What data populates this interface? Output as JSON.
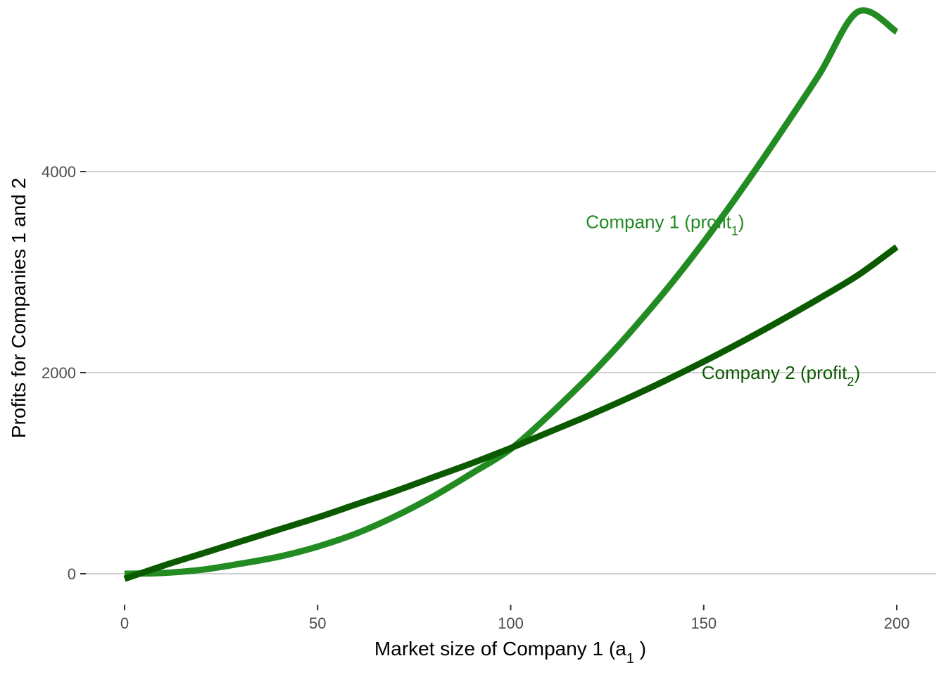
{
  "chart_data": {
    "type": "line",
    "title": "",
    "xlabel": "Market size of Company 1  (a",
    "xlabel_subscript": "1",
    "xlabel_suffix": " )",
    "ylabel": "Profits for Companies 1 and 2",
    "xlim": [
      0,
      200
    ],
    "ylim": [
      -200,
      5300
    ],
    "grid": "horizontal major",
    "x_ticks": [
      0,
      50,
      100,
      150,
      200
    ],
    "y_ticks": [
      0,
      2000,
      4000
    ],
    "x_tick_labels": [
      "0",
      "50",
      "100",
      "150",
      "200"
    ],
    "y_tick_labels": [
      "0",
      "2000",
      "4000"
    ],
    "series": [
      {
        "label": "Company 1 (profit",
        "label_subscript": "1",
        "label_suffix": ")",
        "color": "#228B22",
        "x": [
          0,
          10,
          20,
          30,
          40,
          50,
          60,
          70,
          80,
          90,
          100,
          110,
          120,
          125,
          130,
          140,
          150,
          160,
          170,
          180,
          190,
          200
        ],
        "y": [
          0,
          8,
          40,
          100,
          170,
          270,
          400,
          570,
          770,
          1000,
          1240,
          1580,
          1950,
          2150,
          2360,
          2810,
          3300,
          3830,
          4390,
          4970,
          5590,
          5390
        ]
      },
      {
        "label": "Company 2 (profit",
        "label_subscript": "2",
        "label_suffix": ")",
        "color": "#0B5A00",
        "x": [
          0,
          10,
          20,
          30,
          40,
          50,
          60,
          70,
          80,
          90,
          100,
          110,
          120,
          130,
          140,
          150,
          160,
          170,
          180,
          190,
          200
        ],
        "y": [
          -50,
          80,
          200,
          320,
          440,
          560,
          690,
          820,
          960,
          1100,
          1250,
          1410,
          1570,
          1740,
          1920,
          2110,
          2310,
          2520,
          2740,
          2970,
          3250
        ]
      }
    ],
    "annotations": [
      {
        "series": 0,
        "x": 140,
        "y": 3500
      },
      {
        "series": 1,
        "x": 170,
        "y": 2000
      }
    ]
  }
}
